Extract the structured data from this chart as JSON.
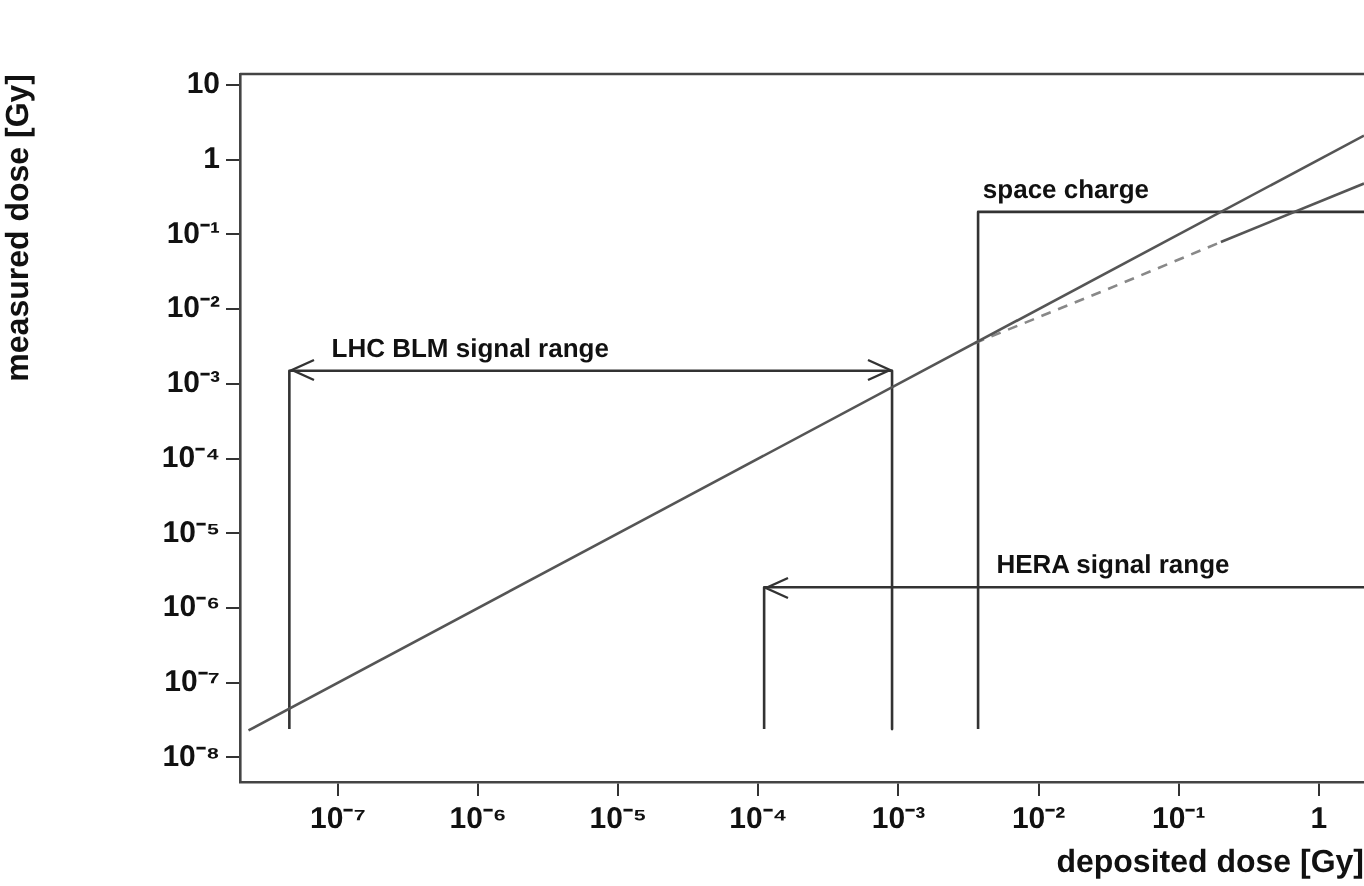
{
  "chart_data": {
    "type": "line",
    "xlabel": "deposited dose [Gy]",
    "ylabel": "measured dose [Gy]",
    "log": "xy",
    "grid": false,
    "legend": false,
    "marker": "none",
    "xlim": [
      2e-08,
      2.1
    ],
    "ylim": [
      4.7e-09,
      14
    ],
    "xticks": [
      {
        "value": 1e-07,
        "label": "10⁻⁷"
      },
      {
        "value": 1e-06,
        "label": "10⁻⁶"
      },
      {
        "value": 1e-05,
        "label": "10⁻⁵"
      },
      {
        "value": 0.0001,
        "label": "10⁻⁴"
      },
      {
        "value": 0.001,
        "label": "10⁻³"
      },
      {
        "value": 0.01,
        "label": "10⁻²"
      },
      {
        "value": 0.1,
        "label": "10⁻¹"
      },
      1
    ],
    "yticks": [
      {
        "value": 1e-08,
        "label": "10⁻⁸"
      },
      {
        "value": 1e-07,
        "label": "10⁻⁷"
      },
      {
        "value": 1e-06,
        "label": "10⁻⁶"
      },
      {
        "value": 1e-05,
        "label": "10⁻⁵"
      },
      {
        "value": 0.0001,
        "label": "10⁻⁴"
      },
      {
        "value": 0.001,
        "label": "10⁻³"
      },
      {
        "value": 0.01,
        "label": "10⁻²"
      },
      {
        "value": 0.1,
        "label": "10⁻¹"
      },
      1,
      10
    ],
    "series": [
      {
        "type": "line",
        "color": "#555555",
        "line_style": "solid",
        "x": [
          2.3e-08,
          2.1
        ],
        "values": [
          2.3e-08,
          2.1
        ]
      },
      {
        "type": "line",
        "color": "#888888",
        "line_style": "dashed",
        "x": [
          0.0035,
          0.03,
          0.2
        ],
        "values": [
          0.0035,
          0.018,
          0.079
        ]
      },
      {
        "type": "line",
        "color": "#555555",
        "line_style": "solid",
        "x": [
          0.2,
          2.1
        ],
        "values": [
          0.079,
          0.48
        ]
      },
      {
        "type": "line",
        "color": "#333333",
        "line_style": "solid",
        "x": [
          4.5e-08,
          4.5e-08,
          0.0009,
          0.0009
        ],
        "values": [
          2.4e-08,
          0.0015,
          0.0015,
          2.4e-08
        ]
      },
      {
        "type": "line",
        "color": "#333333",
        "line_style": "solid",
        "x": [
          0.00011,
          0.00011,
          2.1
        ],
        "values": [
          2.4e-08,
          1.9e-06,
          1.9e-06
        ]
      },
      {
        "type": "line",
        "color": "#333333",
        "line_style": "solid",
        "x": [
          0.0037,
          0.0037,
          2.1
        ],
        "values": [
          2.4e-08,
          0.2,
          0.2
        ]
      }
    ],
    "annotations": [
      {
        "text": "LHC BLM signal range",
        "x": 9e-08,
        "y": 0.0015
      },
      {
        "text": "HERA signal range",
        "x": 0.005,
        "y": 1.9e-06
      },
      {
        "text": "space charge",
        "x": 0.004,
        "y": 0.2
      }
    ]
  }
}
